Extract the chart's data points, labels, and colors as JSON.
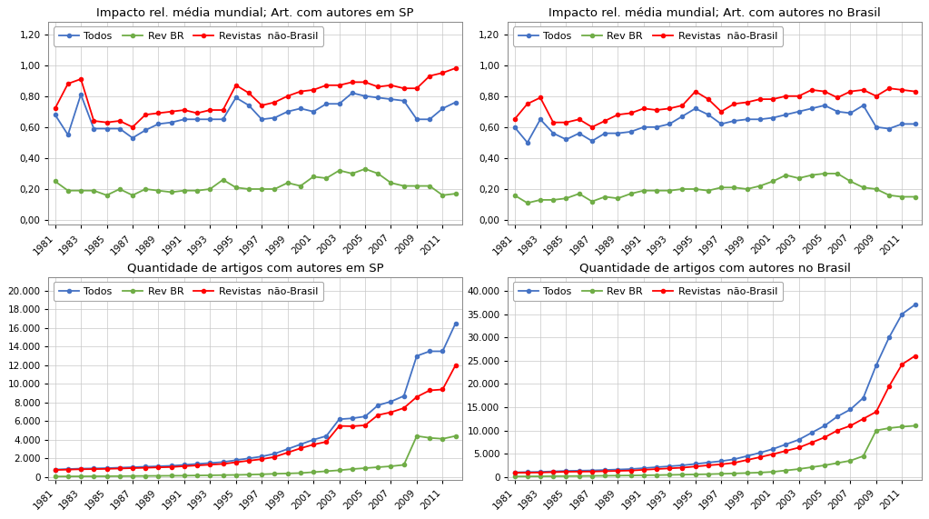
{
  "years": [
    1981,
    1982,
    1983,
    1984,
    1985,
    1986,
    1987,
    1988,
    1989,
    1990,
    1991,
    1992,
    1993,
    1994,
    1995,
    1996,
    1997,
    1998,
    1999,
    2000,
    2001,
    2002,
    2003,
    2004,
    2005,
    2006,
    2007,
    2008,
    2009,
    2010,
    2011,
    2012
  ],
  "sp_impact_todos": [
    0.68,
    0.55,
    0.81,
    0.59,
    0.59,
    0.59,
    0.53,
    0.58,
    0.62,
    0.63,
    0.65,
    0.65,
    0.65,
    0.65,
    0.79,
    0.74,
    0.65,
    0.66,
    0.7,
    0.72,
    0.7,
    0.75,
    0.75,
    0.82,
    0.8,
    0.79,
    0.78,
    0.77,
    0.65,
    0.65,
    0.72,
    0.76
  ],
  "sp_impact_revbr": [
    0.25,
    0.19,
    0.19,
    0.19,
    0.16,
    0.2,
    0.16,
    0.2,
    0.19,
    0.18,
    0.19,
    0.19,
    0.2,
    0.26,
    0.21,
    0.2,
    0.2,
    0.2,
    0.24,
    0.22,
    0.28,
    0.27,
    0.32,
    0.3,
    0.33,
    0.3,
    0.24,
    0.22,
    0.22,
    0.22,
    0.16,
    0.17
  ],
  "sp_impact_nao": [
    0.72,
    0.88,
    0.91,
    0.64,
    0.63,
    0.64,
    0.6,
    0.68,
    0.69,
    0.7,
    0.71,
    0.69,
    0.71,
    0.71,
    0.87,
    0.82,
    0.74,
    0.76,
    0.8,
    0.83,
    0.84,
    0.87,
    0.87,
    0.89,
    0.89,
    0.86,
    0.87,
    0.85,
    0.85,
    0.93,
    0.95,
    0.98
  ],
  "br_impact_todos": [
    0.6,
    0.5,
    0.65,
    0.56,
    0.52,
    0.56,
    0.51,
    0.56,
    0.56,
    0.57,
    0.6,
    0.6,
    0.62,
    0.67,
    0.72,
    0.68,
    0.62,
    0.64,
    0.65,
    0.65,
    0.66,
    0.68,
    0.7,
    0.72,
    0.74,
    0.7,
    0.69,
    0.74,
    0.6,
    0.59,
    0.62,
    0.62
  ],
  "br_impact_revbr": [
    0.16,
    0.11,
    0.13,
    0.13,
    0.14,
    0.17,
    0.12,
    0.15,
    0.14,
    0.17,
    0.19,
    0.19,
    0.19,
    0.2,
    0.2,
    0.19,
    0.21,
    0.21,
    0.2,
    0.22,
    0.25,
    0.29,
    0.27,
    0.29,
    0.3,
    0.3,
    0.25,
    0.21,
    0.2,
    0.16,
    0.15,
    0.15
  ],
  "br_impact_nao": [
    0.65,
    0.75,
    0.79,
    0.63,
    0.63,
    0.65,
    0.6,
    0.64,
    0.68,
    0.69,
    0.72,
    0.71,
    0.72,
    0.74,
    0.83,
    0.78,
    0.7,
    0.75,
    0.76,
    0.78,
    0.78,
    0.8,
    0.8,
    0.84,
    0.83,
    0.79,
    0.83,
    0.84,
    0.8,
    0.85,
    0.84,
    0.83
  ],
  "sp_qty_todos": [
    800,
    850,
    900,
    920,
    950,
    1000,
    1050,
    1100,
    1150,
    1200,
    1300,
    1400,
    1500,
    1600,
    1800,
    2000,
    2200,
    2500,
    3000,
    3500,
    4000,
    4400,
    6200,
    6300,
    6500,
    7700,
    8100,
    8700,
    13000,
    13500,
    13500,
    16500
  ],
  "sp_qty_revbr": [
    50,
    60,
    70,
    75,
    80,
    90,
    100,
    110,
    120,
    130,
    140,
    160,
    180,
    200,
    220,
    250,
    290,
    340,
    380,
    420,
    520,
    620,
    720,
    850,
    950,
    1050,
    1150,
    1300,
    4400,
    4200,
    4100,
    4400
  ],
  "sp_qty_nao": [
    750,
    790,
    830,
    845,
    870,
    910,
    950,
    990,
    1030,
    1070,
    1160,
    1240,
    1320,
    1400,
    1580,
    1750,
    1910,
    2160,
    2620,
    3080,
    3480,
    3780,
    5480,
    5450,
    5550,
    6650,
    6950,
    7400,
    8600,
    9300,
    9400,
    12000
  ],
  "br_qty_todos": [
    1000,
    1050,
    1100,
    1200,
    1300,
    1350,
    1400,
    1500,
    1600,
    1700,
    1900,
    2100,
    2300,
    2500,
    2800,
    3100,
    3400,
    3800,
    4500,
    5200,
    6000,
    7000,
    8000,
    9500,
    11000,
    13000,
    14500,
    17000,
    24000,
    30000,
    35000,
    37000
  ],
  "br_qty_revbr": [
    100,
    120,
    140,
    160,
    180,
    200,
    230,
    260,
    290,
    320,
    360,
    400,
    450,
    500,
    550,
    600,
    680,
    760,
    850,
    950,
    1100,
    1400,
    1700,
    2100,
    2500,
    3000,
    3500,
    4500,
    10000,
    10500,
    10800,
    11000
  ],
  "br_qty_nao": [
    900,
    930,
    960,
    1040,
    1120,
    1150,
    1170,
    1240,
    1310,
    1380,
    1540,
    1700,
    1850,
    2000,
    2250,
    2500,
    2720,
    3040,
    3650,
    4250,
    4900,
    5600,
    6300,
    7400,
    8500,
    10000,
    11000,
    12500,
    14000,
    19500,
    24200,
    26000
  ],
  "colors": {
    "todos": "#4472C4",
    "revbr": "#70AD47",
    "nao": "#FF0000"
  },
  "marker": "o",
  "markersize": 3,
  "linewidth": 1.3,
  "titles": [
    "Impacto rel. média mundial; Art. com autores em SP",
    "Impacto rel. média mundial; Art. com autores no Brasil",
    "Quantidade de artigos com autores em SP",
    "Quantidade de artigos com autores no Brasil"
  ],
  "legend_labels": [
    "Todos",
    "Rev BR",
    "Revistas  não-Brasil"
  ],
  "impact_yticks": [
    0.0,
    0.2,
    0.4,
    0.6,
    0.8,
    1.0,
    1.2
  ],
  "sp_qty_yticks": [
    0,
    2000,
    4000,
    6000,
    8000,
    10000,
    12000,
    14000,
    16000,
    18000,
    20000
  ],
  "br_qty_yticks": [
    0,
    5000,
    10000,
    15000,
    20000,
    25000,
    30000,
    35000,
    40000
  ],
  "xtick_years": [
    1981,
    1983,
    1985,
    1987,
    1989,
    1991,
    1993,
    1995,
    1997,
    1999,
    2001,
    2003,
    2005,
    2007,
    2009,
    2011
  ],
  "bg_color": "#FFFFFF",
  "grid_color": "#C8C8C8",
  "title_fontsize": 9.5,
  "tick_fontsize": 7.5,
  "legend_fontsize": 8
}
